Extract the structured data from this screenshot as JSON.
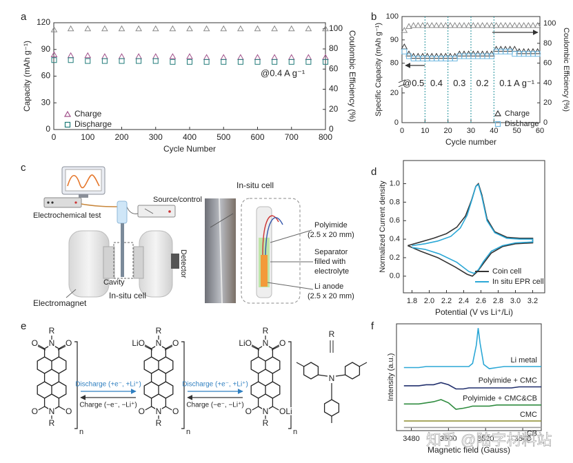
{
  "chart_data": [
    {
      "panel": "a",
      "type": "scatter",
      "xlabel": "Cycle Number",
      "ylabel": "Capacity (mAh g⁻¹)",
      "y2label": "Coulombic Efficiency (%)",
      "annotation": "@0.4 A g⁻¹",
      "legend": "lower left",
      "xlim": [
        0,
        800
      ],
      "xticks": [
        0,
        100,
        200,
        300,
        400,
        500,
        600,
        700,
        800
      ],
      "ylim": [
        0,
        120
      ],
      "yticks": [
        0,
        30,
        60,
        90,
        120
      ],
      "y2lim": [
        0,
        106
      ],
      "y2ticks": [
        0,
        20,
        40,
        60,
        80,
        100
      ],
      "x": [
        1,
        50,
        100,
        150,
        200,
        250,
        300,
        350,
        400,
        450,
        500,
        550,
        600,
        650,
        700,
        750,
        800
      ],
      "series": [
        {
          "name": "Charge",
          "color": "#a0508a",
          "marker": "triangle",
          "values": [
            84,
            83,
            83,
            82,
            82,
            82,
            82,
            82,
            82,
            81,
            81,
            81,
            81,
            81,
            81,
            81,
            81
          ]
        },
        {
          "name": "Discharge",
          "color": "#1e7a78",
          "marker": "square",
          "values": [
            78,
            78,
            77,
            77,
            77,
            77,
            77,
            76,
            76,
            76,
            76,
            76,
            76,
            76,
            76,
            76,
            76
          ]
        },
        {
          "color": "#888888",
          "marker": "triangle",
          "axis": "y2",
          "values": [
            99,
            100,
            100,
            100,
            100,
            100,
            100,
            100,
            100,
            100,
            100,
            100,
            100,
            100,
            100,
            100,
            100
          ]
        }
      ]
    },
    {
      "panel": "b",
      "type": "scatter",
      "xlabel": "Cycle number",
      "ylabel": "Specific Capacity (mAh g⁻¹)",
      "y2label": "Coulombic Efficiency (%)",
      "legend": "lower right",
      "xlim": [
        0,
        60
      ],
      "xticks": [
        0,
        10,
        20,
        30,
        40,
        50,
        60
      ],
      "ylim": [
        0,
        100
      ],
      "ybreak": [
        20,
        75
      ],
      "yticks": [
        0,
        20,
        80,
        90,
        100
      ],
      "y2lim": [
        0,
        107
      ],
      "y2ticks": [
        0,
        20,
        40,
        60,
        80,
        100
      ],
      "vlines": [
        10,
        20,
        30,
        40
      ],
      "rate_labels": [
        "@0.5",
        "0.4",
        "0.3",
        "0.2",
        "0.1 A g⁻¹"
      ],
      "x": [
        1,
        3,
        5,
        7,
        9,
        11,
        13,
        15,
        17,
        19,
        21,
        23,
        25,
        27,
        29,
        31,
        33,
        35,
        37,
        39,
        41,
        43,
        45,
        47,
        49,
        51,
        53,
        55,
        57,
        59
      ],
      "series": [
        {
          "name": "Charge",
          "color": "#333333",
          "marker": "triangle",
          "values": [
            87,
            84,
            83,
            83,
            83,
            83,
            83,
            83,
            83,
            83,
            83,
            83,
            84,
            84,
            84,
            84,
            84,
            84,
            84,
            84,
            86,
            86,
            86,
            86,
            86,
            85,
            85,
            85,
            85,
            85
          ]
        },
        {
          "name": "Discharge",
          "color": "#6fb7e0",
          "marker": "square",
          "values": [
            85,
            83,
            82,
            82,
            82,
            82,
            82,
            82,
            82,
            82,
            82,
            82,
            83,
            83,
            83,
            83,
            83,
            83,
            83,
            83,
            85,
            85,
            85,
            85,
            84,
            84,
            84,
            84,
            84,
            84
          ]
        },
        {
          "color": "#888888",
          "marker": "triangle",
          "axis": "y2",
          "values": [
            93,
            97,
            98,
            98,
            98,
            98,
            98,
            98,
            98,
            98,
            98,
            98,
            98,
            98,
            98,
            98,
            98,
            98,
            98,
            98,
            98,
            98,
            98,
            98,
            98,
            98,
            98,
            98,
            98,
            98
          ]
        }
      ]
    },
    {
      "panel": "d",
      "type": "line",
      "xlabel": "Potential (V vs Li⁺/Li)",
      "ylabel": "Normalized Current density",
      "legend": "lower right",
      "xlim": [
        1.7,
        3.34
      ],
      "xticks": [
        1.8,
        {
          "value": 2,
          "label": "2.0"
        },
        2.2,
        2.4,
        2.6,
        2.8,
        {
          "value": 3,
          "label": "3.0"
        },
        3.2
      ],
      "ylim": [
        -0.18,
        1.25
      ],
      "yticks": [
        {
          "value": 0,
          "label": "0.0"
        },
        0.2,
        0.4,
        0.6,
        0.8,
        {
          "value": 1,
          "label": "1.0"
        }
      ],
      "series": [
        {
          "name": "Coin cell",
          "color": "#333333",
          "x": [
            1.75,
            1.9,
            2.05,
            2.2,
            2.32,
            2.42,
            2.49,
            2.54,
            2.57,
            2.61,
            2.67,
            2.76,
            2.9,
            3.05,
            3.2,
            3.2,
            3.0,
            2.85,
            2.72,
            2.63,
            2.56,
            2.5,
            2.44,
            2.3,
            2.1,
            1.9,
            1.75
          ],
          "values": [
            0.33,
            0.37,
            0.41,
            0.46,
            0.53,
            0.65,
            0.82,
            0.97,
            1.0,
            0.88,
            0.62,
            0.48,
            0.42,
            0.41,
            0.41,
            0.36,
            0.35,
            0.32,
            0.25,
            0.14,
            0.05,
            0.0,
            0.02,
            0.1,
            0.2,
            0.27,
            0.33
          ]
        },
        {
          "name": "In situ EPR cell",
          "color": "#2aa7d6",
          "x": [
            1.8,
            1.95,
            2.1,
            2.25,
            2.36,
            2.44,
            2.5,
            2.54,
            2.57,
            2.61,
            2.67,
            2.76,
            2.9,
            3.05,
            3.2,
            3.2,
            3.0,
            2.85,
            2.72,
            2.63,
            2.57,
            2.52,
            2.46,
            2.32,
            2.12,
            1.95,
            1.8
          ],
          "values": [
            0.33,
            0.35,
            0.38,
            0.43,
            0.52,
            0.66,
            0.84,
            0.97,
            0.99,
            0.86,
            0.6,
            0.47,
            0.41,
            0.4,
            0.4,
            0.37,
            0.36,
            0.33,
            0.27,
            0.16,
            0.07,
            0.03,
            0.05,
            0.15,
            0.24,
            0.29,
            0.31
          ]
        }
      ]
    },
    {
      "panel": "f",
      "type": "line",
      "xlabel": "Magnetic field (Gauss)",
      "ylabel": "Intensity (a.u.)",
      "legend": "inline",
      "xlim": [
        3472,
        3550
      ],
      "xticks": [
        3480,
        3500,
        3520,
        3540
      ],
      "ylim": [
        0,
        10
      ],
      "x": [
        3476,
        3480,
        3484,
        3488,
        3492,
        3496,
        3500,
        3504,
        3508,
        3511,
        3513,
        3515,
        3516,
        3517,
        3519,
        3522,
        3526,
        3530,
        3534,
        3538,
        3542,
        3546,
        3550
      ],
      "series": [
        {
          "name": "Li metal",
          "color": "#2aa7d6",
          "values": [
            5.9,
            5.9,
            5.9,
            6.0,
            6.0,
            6.0,
            6.0,
            6.0,
            6.0,
            6.0,
            6.3,
            8.0,
            9.6,
            8.2,
            6.2,
            5.8,
            5.9,
            6.0,
            6.0,
            6.0,
            6.0,
            6.0,
            6.0
          ]
        },
        {
          "name": "Polyimide + CMC",
          "color": "#1f2d6b",
          "values": [
            4.2,
            4.2,
            4.2,
            4.3,
            4.3,
            4.5,
            4.3,
            3.9,
            3.9,
            4.0,
            4.0,
            4.0,
            4.0,
            4.0,
            4.0,
            4.0,
            4.0,
            4.0,
            4.0,
            4.1,
            4.1,
            4.1,
            4.1
          ]
        },
        {
          "name": "Polyimide + CMC&CB",
          "color": "#2e8b3e",
          "values": [
            2.5,
            2.5,
            2.5,
            2.6,
            2.7,
            2.9,
            2.6,
            2.0,
            2.1,
            2.2,
            2.3,
            2.3,
            2.3,
            2.3,
            2.3,
            2.3,
            2.4,
            2.4,
            2.4,
            2.4,
            2.4,
            2.4,
            2.4
          ]
        },
        {
          "name": "CMC",
          "color": "#8a8a2a",
          "values": [
            0.9,
            0.9,
            0.9,
            0.9,
            0.9,
            0.9,
            0.9,
            0.9,
            0.9,
            0.9,
            0.9,
            0.9,
            0.9,
            0.9,
            0.9,
            0.9,
            0.9,
            0.9,
            0.9,
            0.9,
            0.9,
            0.9,
            0.9
          ]
        },
        {
          "name": "CB",
          "color": "#9a9a9a",
          "values": [
            0.3,
            0.3,
            0.3,
            0.3,
            0.3,
            0.3,
            0.3,
            0.3,
            0.3,
            0.3,
            0.3,
            0.3,
            0.3,
            0.3,
            0.3,
            0.3,
            0.3,
            0.3,
            0.3,
            0.3,
            0.3,
            0.3,
            0.3
          ]
        }
      ]
    }
  ],
  "panel_c": {
    "panel": "c",
    "source": "Source/control",
    "electrochem": "Electrochemical test",
    "electromagnet": "Electromagnet",
    "cavity": "Cavity",
    "cell": "In-situ cell",
    "detector": "Detector",
    "title": "In-situ cell",
    "polyimide": [
      "Polyimide",
      "(2.5 x 20 mm)"
    ],
    "separator": [
      "Separator",
      "filled with",
      "electrolyte"
    ],
    "anode": [
      "Li anode",
      "(2.5 x 20 mm)"
    ]
  },
  "panel_e": {
    "panel": "e",
    "molecules": [
      {
        "r_top": "R",
        "n_top": "N",
        "o_tl": "O",
        "o_tr": "O",
        "o_bl": "O",
        "o_br": "O",
        "n_bot": "N",
        "r_bot": "R",
        "repeat": "n"
      },
      {
        "r_top": "R",
        "n_top": "N",
        "o_tl": "LiO",
        "o_tr": "O",
        "o_bl": "O",
        "o_br": "O",
        "n_bot": "N",
        "r_bot": "R",
        "repeat": "n"
      },
      {
        "r_top": "R",
        "n_top": "N",
        "o_tl": "LiO",
        "o_tr": "O",
        "o_bl": "O",
        "o_br": "OLi",
        "n_bot": "N",
        "r_bot": "R",
        "repeat": "n"
      }
    ],
    "steps": [
      {
        "forward": "Discharge (+e⁻, +Li⁺)",
        "backward": "Charge (−e⁻, −Li⁺)"
      },
      {
        "forward": "Discharge (+e⁻, +Li⁺)",
        "backward": "Charge (−e⁻, −Li⁺)"
      }
    ],
    "substituent": {
      "r": "R",
      "n": "N"
    }
  },
  "watermark": "知乎 @陆字材料站"
}
